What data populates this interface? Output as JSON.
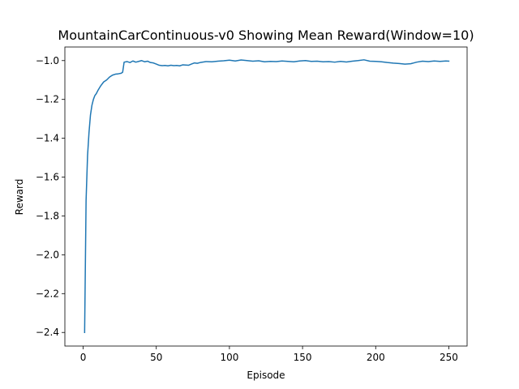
{
  "chart_data": {
    "type": "line",
    "title": "MountainCarContinuous-v0 Showing Mean Reward(Window=10)",
    "xlabel": "Episode",
    "ylabel": "Reward",
    "xlim": [
      -12.5,
      262.5
    ],
    "ylim": [
      -2.47,
      -0.93
    ],
    "xticks": [
      0,
      50,
      100,
      150,
      200,
      250
    ],
    "yticks": [
      -2.4,
      -2.2,
      -2.0,
      -1.8,
      -1.6,
      -1.4,
      -1.2,
      -1.0
    ],
    "xtick_labels": [
      "0",
      "50",
      "100",
      "150",
      "200",
      "250"
    ],
    "ytick_labels": [
      "−2.4",
      "−2.2",
      "−2.0",
      "−1.8",
      "−1.6",
      "−1.4",
      "−1.2",
      "−1.0"
    ],
    "grid": false,
    "line_color": "#1f77b4",
    "series": [
      {
        "x": [
          1,
          2,
          3,
          4,
          5,
          6,
          7,
          8,
          9,
          10,
          12,
          14,
          16,
          18,
          20,
          22,
          24,
          26,
          27,
          28,
          30,
          32,
          34,
          36,
          38,
          40,
          42,
          44,
          46,
          48,
          50,
          52,
          54,
          56,
          58,
          60,
          62,
          64,
          66,
          68,
          70,
          72,
          74,
          76,
          78,
          80,
          84,
          88,
          92,
          96,
          100,
          104,
          108,
          112,
          116,
          120,
          124,
          128,
          132,
          136,
          140,
          144,
          148,
          152,
          156,
          160,
          164,
          168,
          172,
          176,
          180,
          184,
          188,
          192,
          196,
          200,
          204,
          208,
          212,
          216,
          220,
          224,
          228,
          232,
          236,
          240,
          244,
          248,
          250
        ],
        "y": [
          -2.4,
          -1.72,
          -1.49,
          -1.37,
          -1.28,
          -1.23,
          -1.2,
          -1.18,
          -1.17,
          -1.155,
          -1.13,
          -1.11,
          -1.1,
          -1.085,
          -1.075,
          -1.07,
          -1.068,
          -1.065,
          -1.06,
          -1.008,
          -1.005,
          -1.01,
          -1.002,
          -1.008,
          -1.004,
          -1.0,
          -1.006,
          -1.003,
          -1.01,
          -1.012,
          -1.018,
          -1.024,
          -1.026,
          -1.025,
          -1.027,
          -1.024,
          -1.026,
          -1.025,
          -1.027,
          -1.022,
          -1.023,
          -1.024,
          -1.018,
          -1.012,
          -1.014,
          -1.01,
          -1.005,
          -1.006,
          -1.003,
          -1.001,
          -0.998,
          -1.002,
          -0.997,
          -1.0,
          -1.003,
          -1.001,
          -1.006,
          -1.004,
          -1.005,
          -1.002,
          -1.004,
          -1.006,
          -1.002,
          -1.0,
          -1.004,
          -1.003,
          -1.006,
          -1.005,
          -1.008,
          -1.004,
          -1.007,
          -1.003,
          -1.0,
          -0.996,
          -1.003,
          -1.004,
          -1.006,
          -1.01,
          -1.013,
          -1.015,
          -1.018,
          -1.016,
          -1.008,
          -1.003,
          -1.005,
          -1.002,
          -1.004,
          -1.002,
          -1.003
        ]
      }
    ]
  }
}
